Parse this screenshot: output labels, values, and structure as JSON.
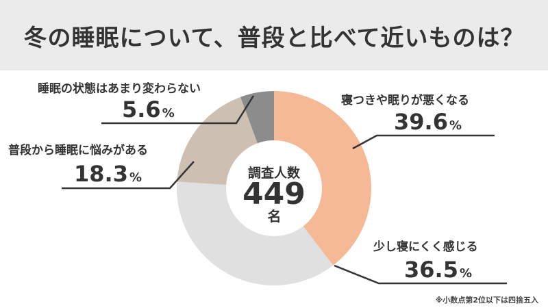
{
  "title": "冬の睡眠について、普段と比べて近いものは？",
  "center": {
    "label": "調査人数",
    "count": "449",
    "unit": "名"
  },
  "footnote": "※小数点第2位以下は四捨五入",
  "percent_unit": "%",
  "chart_data": {
    "type": "pie",
    "style": "donut",
    "start_angle_deg": 0,
    "direction": "clockwise",
    "slices": [
      {
        "label": "寝つきや眠りが悪くなる",
        "value": 39.6,
        "display": "39.6",
        "color": "#f5b996"
      },
      {
        "label": "少し寝にくく感じる",
        "value": 36.5,
        "display": "36.5",
        "color": "#e0e0e0"
      },
      {
        "label": "普段から睡眠に悩みがある",
        "value": 18.3,
        "display": "18.3",
        "color": "#cdc0b2"
      },
      {
        "label": "睡眠の状態はあまり変わらない",
        "value": 5.6,
        "display": "5.6",
        "color": "#8c8c8c"
      }
    ]
  }
}
